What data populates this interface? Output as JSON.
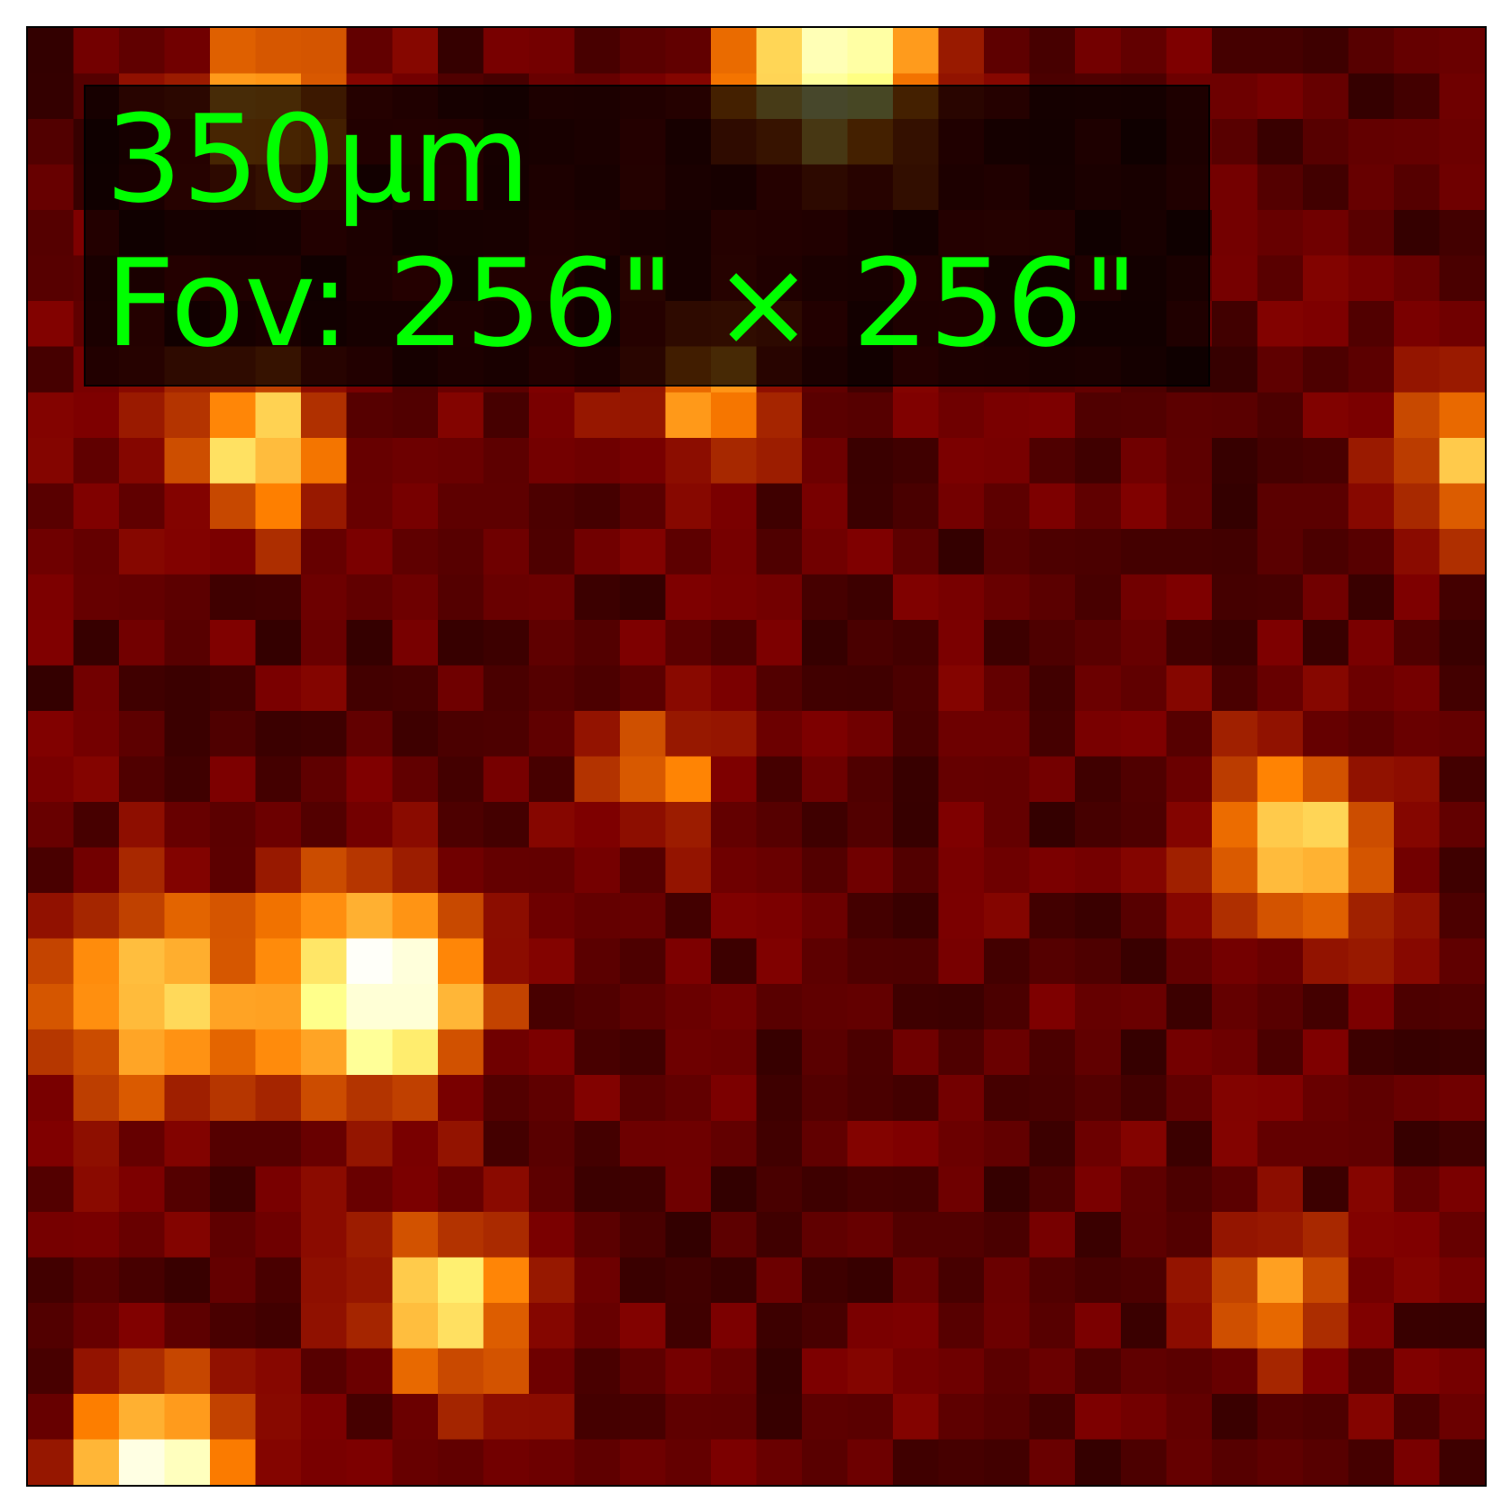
{
  "image": {
    "band_label": "350µm",
    "fov_label": "Fov: 256\" × 256\"",
    "label_color": "#00ff00",
    "colormap": "afmhot",
    "grid_size": 32,
    "frame_color": "#000000",
    "label_box_color": "#000000"
  }
}
